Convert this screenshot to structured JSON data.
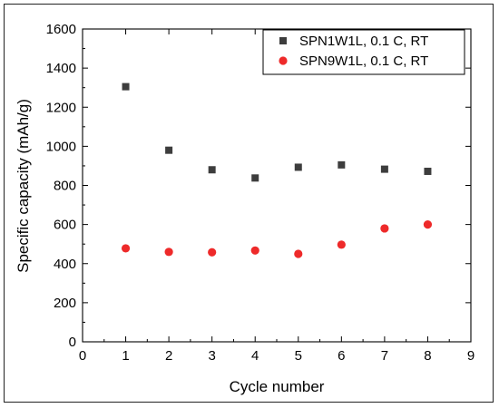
{
  "chart_data": {
    "type": "scatter",
    "xlabel": "Cycle number",
    "ylabel": "Specific capacity (mAh/g)",
    "xlim": [
      0,
      9
    ],
    "ylim": [
      0,
      1600
    ],
    "x_ticks": [
      0,
      1,
      2,
      3,
      4,
      5,
      6,
      7,
      8,
      9
    ],
    "y_ticks": [
      0,
      200,
      400,
      600,
      800,
      1000,
      1200,
      1400,
      1600
    ],
    "grid": false,
    "legend_position": "top-right",
    "series": [
      {
        "name": "SPN1W1L, 0.1 C, RT",
        "marker": "square",
        "color": "#3d3d3d",
        "x": [
          1,
          2,
          3,
          4,
          5,
          6,
          7,
          8
        ],
        "y": [
          1305,
          980,
          880,
          838,
          893,
          905,
          883,
          872
        ]
      },
      {
        "name": "SPN9W1L, 0.1 C, RT",
        "marker": "circle",
        "color": "#ee2a2a",
        "x": [
          1,
          2,
          3,
          4,
          5,
          6,
          7,
          8
        ],
        "y": [
          478,
          460,
          458,
          467,
          450,
          497,
          580,
          600
        ]
      }
    ]
  }
}
